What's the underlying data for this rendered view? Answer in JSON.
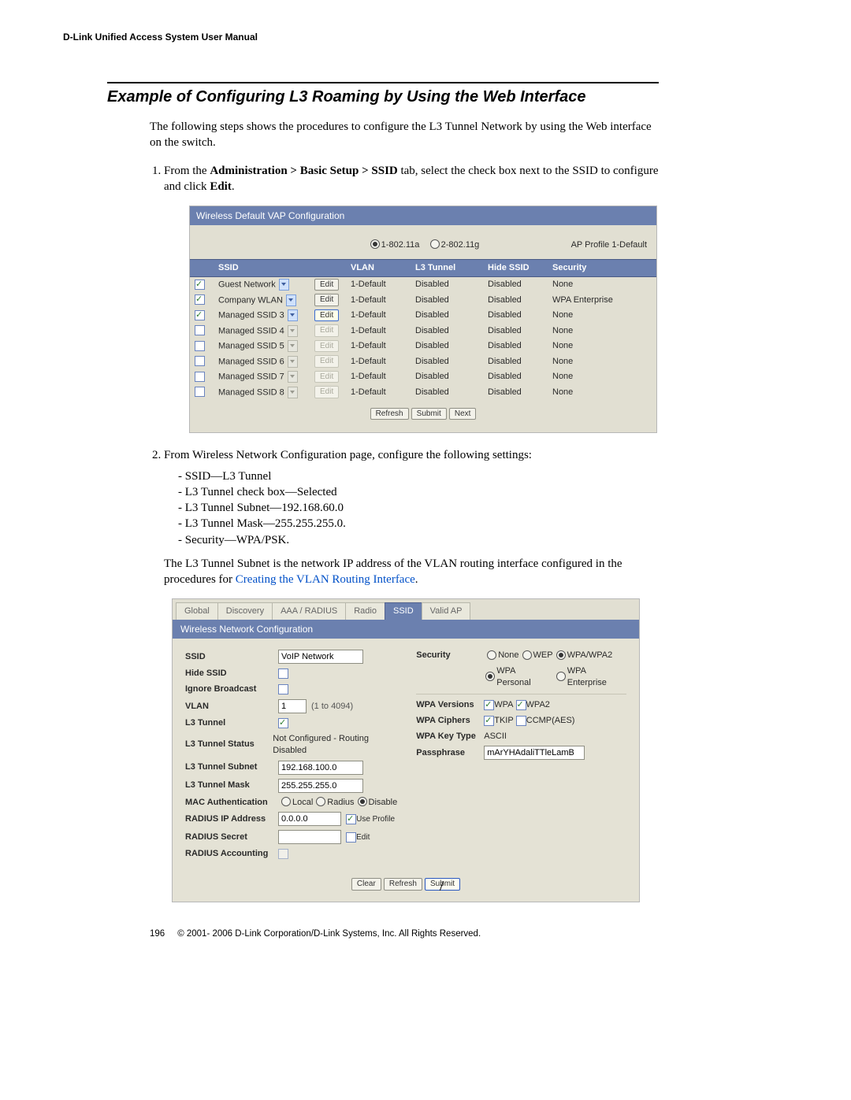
{
  "header": "D-Link Unified Access System User Manual",
  "title": "Example of Configuring L3 Roaming by Using the Web Interface",
  "intro": "The following steps shows the procedures to configure the L3 Tunnel Network by using the Web interface on the switch.",
  "step1_a": "From the ",
  "step1_nav": "Administration > Basic Setup > SSID",
  "step1_b": " tab, select the check box next to the SSID to configure and click ",
  "step1_edit": "Edit",
  "step1_c": ".",
  "step2": "From Wireless Network Configuration page, configure the following settings:",
  "bullets": [
    "SSID—L3 Tunnel",
    "L3 Tunnel check box—Selected",
    "L3 Tunnel Subnet—192.168.60.0",
    "L3 Tunnel Mask—255.255.255.0.",
    "Security—WPA/PSK."
  ],
  "para2a": "The L3 Tunnel Subnet is the network IP address of the VLAN routing interface configured in the procedures for ",
  "para2link": "Creating the VLAN Routing Interface",
  "para2b": ".",
  "shot1": {
    "title": "Wireless Default VAP Configuration",
    "profile": "AP Profile 1-Default",
    "radio1": "1-802.11a",
    "radio2": "2-802.11g",
    "cols": [
      "SSID",
      "VLAN",
      "L3 Tunnel",
      "Hide SSID",
      "Security"
    ],
    "edit": "Edit",
    "rows": [
      {
        "chk": true,
        "ssid": "Guest Network",
        "en": true,
        "vlan": "1-Default",
        "l3": "Disabled",
        "hide": "Disabled",
        "sec": "None"
      },
      {
        "chk": true,
        "ssid": "Company WLAN",
        "en": true,
        "vlan": "1-Default",
        "l3": "Disabled",
        "hide": "Disabled",
        "sec": "WPA Enterprise"
      },
      {
        "chk": true,
        "ssid": "Managed SSID 3",
        "en": true,
        "vlan": "1-Default",
        "l3": "Disabled",
        "hide": "Disabled",
        "sec": "None"
      },
      {
        "chk": false,
        "ssid": "Managed SSID 4",
        "en": false,
        "vlan": "1-Default",
        "l3": "Disabled",
        "hide": "Disabled",
        "sec": "None"
      },
      {
        "chk": false,
        "ssid": "Managed SSID 5",
        "en": false,
        "vlan": "1-Default",
        "l3": "Disabled",
        "hide": "Disabled",
        "sec": "None"
      },
      {
        "chk": false,
        "ssid": "Managed SSID 6",
        "en": false,
        "vlan": "1-Default",
        "l3": "Disabled",
        "hide": "Disabled",
        "sec": "None"
      },
      {
        "chk": false,
        "ssid": "Managed SSID 7",
        "en": false,
        "vlan": "1-Default",
        "l3": "Disabled",
        "hide": "Disabled",
        "sec": "None"
      },
      {
        "chk": false,
        "ssid": "Managed SSID 8",
        "en": false,
        "vlan": "1-Default",
        "l3": "Disabled",
        "hide": "Disabled",
        "sec": "None"
      }
    ],
    "btn_refresh": "Refresh",
    "btn_submit": "Submit",
    "btn_next": "Next"
  },
  "shot2": {
    "tabs": [
      "Global",
      "Discovery",
      "AAA / RADIUS",
      "Radio",
      "SSID",
      "Valid AP"
    ],
    "active_tab": 4,
    "panel": "Wireless Network Configuration",
    "left": {
      "ssid_label": "SSID",
      "ssid_val": "VoIP Network",
      "hide_label": "Hide SSID",
      "ign_label": "Ignore Broadcast",
      "vlan_label": "VLAN",
      "vlan_val": "1",
      "vlan_hint": "(1 to 4094)",
      "l3_label": "L3 Tunnel",
      "l3s_label": "L3 Tunnel Status",
      "l3s_val": "Not Configured - Routing Disabled",
      "sub_label": "L3 Tunnel Subnet",
      "sub_val": "192.168.100.0",
      "mask_label": "L3 Tunnel Mask",
      "mask_val": "255.255.255.0",
      "mac_label": "MAC Authentication",
      "mac_o1": "Local",
      "mac_o2": "Radius",
      "mac_o3": "Disable",
      "rip_label": "RADIUS IP Address",
      "rip_val": "0.0.0.0",
      "rip_chk": "Use Profile",
      "rsec_label": "RADIUS Secret",
      "rsec_btn": "Edit",
      "racct_label": "RADIUS Accounting"
    },
    "right": {
      "sec_label": "Security",
      "sec_o1": "None",
      "sec_o2": "WEP",
      "sec_o3": "WPA/WPA2",
      "sec_o4": "WPA Personal",
      "sec_o5": "WPA Enterprise",
      "ver_label": "WPA Versions",
      "ver_o1": "WPA",
      "ver_o2": "WPA2",
      "cip_label": "WPA Ciphers",
      "cip_o1": "TKIP",
      "cip_o2": "CCMP(AES)",
      "key_label": "WPA Key Type",
      "key_val": "ASCII",
      "pass_label": "Passphrase",
      "pass_val": "mArYHAdaliTTleLamB"
    },
    "btn_clear": "Clear",
    "btn_refresh": "Refresh",
    "btn_submit": "Submit"
  },
  "footer_page": "196",
  "footer_text": "© 2001- 2006 D-Link Corporation/D-Link Systems, Inc. All Rights Reserved."
}
